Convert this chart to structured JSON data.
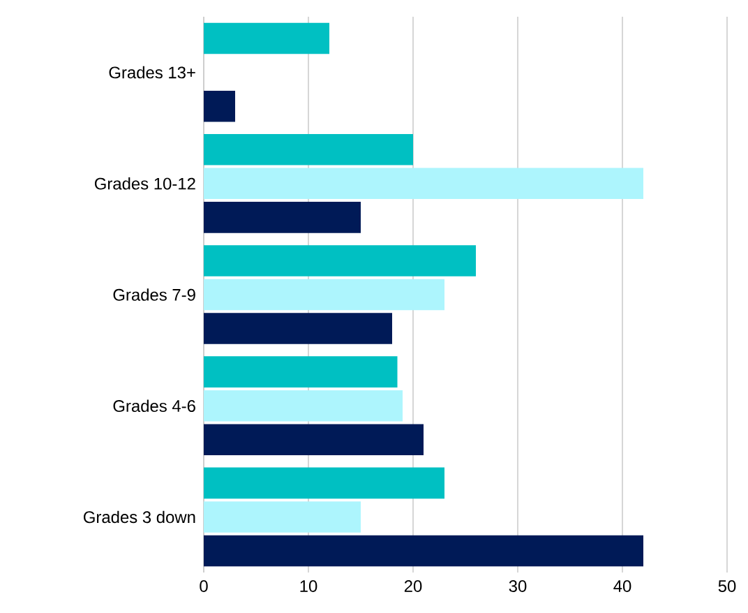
{
  "chart_data": {
    "type": "bar",
    "orientation": "horizontal",
    "categories": [
      "Grades 13+",
      "Grades 10-12",
      "Grades 7-9",
      "Grades 4-6",
      "Grades 3 down"
    ],
    "series": [
      {
        "color": "#00c0c2",
        "values": [
          12,
          20,
          26,
          18.5,
          23
        ]
      },
      {
        "color": "#adf5fd",
        "values": [
          null,
          42,
          23,
          19,
          15
        ]
      },
      {
        "color": "#001a57",
        "values": [
          3,
          15,
          18,
          21,
          42
        ]
      }
    ],
    "xlim": [
      0,
      50
    ],
    "xticks": [
      0,
      10,
      20,
      30,
      40,
      50
    ],
    "grid": "x"
  }
}
